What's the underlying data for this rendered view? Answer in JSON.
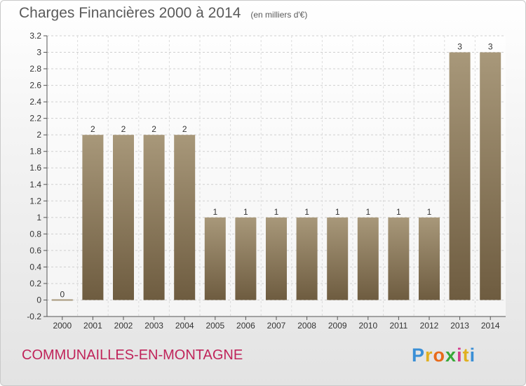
{
  "chart_data": {
    "type": "bar",
    "title": "Charges Financières 2000 à 2014",
    "subtitle": "(en milliers d'€)",
    "categories": [
      "2000",
      "2001",
      "2002",
      "2003",
      "2004",
      "2005",
      "2006",
      "2007",
      "2008",
      "2009",
      "2010",
      "2011",
      "2012",
      "2013",
      "2014"
    ],
    "values": [
      0,
      2,
      2,
      2,
      2,
      1,
      1,
      1,
      1,
      1,
      1,
      1,
      1,
      3,
      3
    ],
    "data_labels": [
      "0",
      "2",
      "2",
      "2",
      "2",
      "1",
      "1",
      "1",
      "1",
      "1",
      "1",
      "1",
      "1",
      "3",
      "3"
    ],
    "ylim": [
      -0.2,
      3.2
    ],
    "yticks": [
      "-0.2",
      "0",
      "0.2",
      "0.4",
      "0.6",
      "0.8",
      "1",
      "1.2",
      "1.4",
      "1.6",
      "1.8",
      "2",
      "2.2",
      "2.4",
      "2.6",
      "2.8",
      "3",
      "3.2"
    ],
    "xlabel": "",
    "ylabel": "",
    "grid": true,
    "legend": "none",
    "bar_color_top": "#a8987a",
    "bar_color_bottom": "#6e5c40"
  },
  "footer": {
    "commune": "COMMUNAILLES-EN-MONTAGNE",
    "logo_letters": [
      "P",
      "r",
      "o",
      "x",
      "i",
      "t",
      "i"
    ],
    "logo_colors": [
      "#3a8fd6",
      "#e0b020",
      "#e86a1a",
      "#38a838",
      "#d43c8c",
      "#e0b020",
      "#3a8fd6"
    ]
  }
}
